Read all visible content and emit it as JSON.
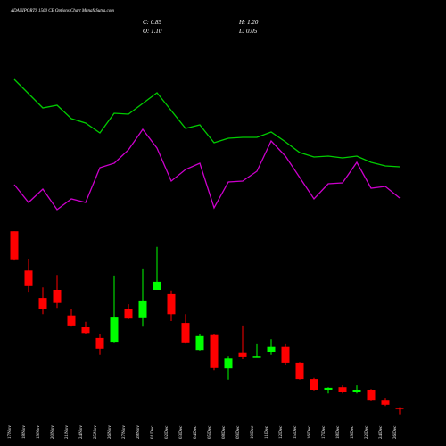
{
  "chart_data": {
    "type": "candlestick",
    "title": "ADANIPORTS 1560 CE Options Chart MunafaSutra.com",
    "close_text": "C: 0.85",
    "high_text": "H: 1.20",
    "open_text": "O: 1.10",
    "low_text": "L: 0.05",
    "categories": [
      "17 Nov",
      "18 Nov",
      "19 Nov",
      "20 Nov",
      "21 Nov",
      "24 Nov",
      "25 Nov",
      "26 Nov",
      "27 Nov",
      "28 Nov",
      "01 Dec",
      "02 Dec",
      "03 Dec",
      "04 Dec",
      "05 Dec",
      "08 Dec",
      "09 Dec",
      "10 Dec",
      "11 Dec",
      "12 Dec",
      "15 Dec",
      "16 Dec",
      "17 Dec",
      "18 Dec",
      "19 Dec",
      "22 Dec",
      "24 Dec",
      "26 Dec"
    ],
    "open": [
      29.4,
      23.1,
      18.7,
      20.0,
      15.9,
      14.0,
      12.3,
      11.7,
      17.0,
      15.6,
      20.0,
      19.3,
      14.7,
      10.4,
      12.9,
      7.4,
      9.9,
      9.3,
      10.0,
      10.9,
      8.3,
      5.7,
      4.0,
      4.4,
      3.6,
      4.0,
      2.4,
      1.1
    ],
    "high": [
      29.4,
      25.0,
      20.4,
      22.4,
      17.0,
      14.9,
      13.0,
      22.3,
      17.7,
      23.3,
      26.9,
      19.9,
      16.1,
      13.0,
      13.0,
      9.4,
      14.3,
      11.3,
      12.1,
      11.3,
      8.4,
      5.9,
      4.4,
      4.7,
      4.7,
      4.1,
      2.7,
      1.2
    ],
    "low": [
      24.7,
      19.7,
      16.1,
      17.1,
      14.1,
      13.0,
      9.6,
      11.6,
      15.3,
      14.1,
      20.0,
      15.0,
      11.4,
      10.3,
      7.1,
      5.6,
      8.9,
      9.3,
      9.6,
      8.0,
      5.6,
      3.9,
      3.4,
      3.4,
      3.4,
      2.3,
      1.4,
      0.05
    ],
    "close": [
      24.9,
      20.6,
      17.0,
      17.9,
      14.3,
      13.1,
      10.6,
      15.7,
      15.4,
      18.3,
      21.3,
      16.1,
      11.6,
      12.6,
      7.6,
      9.1,
      9.3,
      9.4,
      10.9,
      8.3,
      5.7,
      4.0,
      4.3,
      3.6,
      4.0,
      2.4,
      1.6,
      0.85
    ],
    "up_color": "#00ff00",
    "down_color": "#ff0000",
    "ylim": [
      0,
      30
    ],
    "y2lim": [
      0,
      200
    ],
    "lines": [
      {
        "color": "#00cc00",
        "axis": "y2",
        "values": [
          171,
          155,
          139,
          142,
          127,
          122,
          111,
          133,
          132,
          144,
          156,
          136,
          116,
          120,
          100,
          105,
          106,
          106,
          112,
          101,
          89,
          84,
          85,
          83,
          85,
          78,
          74,
          73
        ]
      },
      {
        "color": "#cc00cc",
        "axis": "y2",
        "values": [
          53,
          33,
          48,
          25,
          37,
          33,
          72,
          77,
          92,
          115,
          94,
          57,
          70,
          77,
          27,
          56,
          57,
          68,
          102,
          85,
          61,
          37,
          54,
          55,
          78,
          49,
          51,
          38
        ]
      }
    ]
  }
}
